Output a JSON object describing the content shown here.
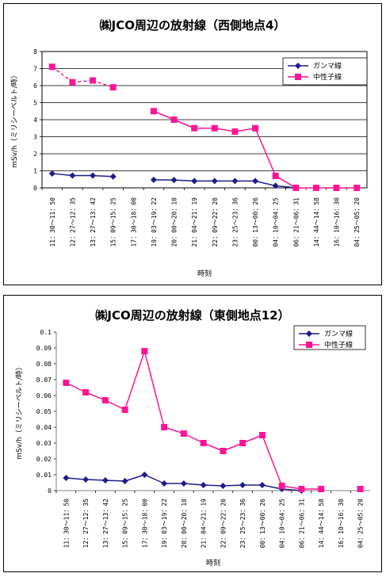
{
  "chart_data": [
    {
      "type": "line",
      "title": "㈱JCO周辺の放射線（西側地点4）",
      "ylabel": "mSv/h（ミリシーベルト/時）",
      "xlabel": "時刻",
      "ylim": [
        0,
        8
      ],
      "yticks": [
        "0",
        "1",
        "2",
        "3",
        "4",
        "5",
        "6",
        "7",
        "8"
      ],
      "grid": true,
      "legend_position": "top-right",
      "categories": [
        "11：30～11：50",
        "12：27～12：35",
        "13：27～13：42",
        "15：09～15：25",
        "17：30～18：00",
        "19：03～19：22",
        "20：00～20：10",
        "21：04～21：19",
        "22：09～22：20",
        "23：25～23：36",
        "00：13～00：26",
        "04：10～04：25",
        "06：21～06：31",
        "14：44～14：58",
        "16：10～16：30",
        "04：25～05：20"
      ],
      "series": [
        {
          "name": "ガンマ線",
          "color": "#1c1c8a",
          "marker": "diamond",
          "values": [
            0.84,
            0.72,
            0.72,
            0.66,
            null,
            0.47,
            0.46,
            0.4,
            0.4,
            0.4,
            0.4,
            0.12,
            0.0,
            null,
            null,
            null
          ]
        },
        {
          "name": "中性子線",
          "color": "#ff1493",
          "marker": "square",
          "values": [
            7.1,
            6.2,
            6.3,
            5.9,
            null,
            4.5,
            4.0,
            3.5,
            3.5,
            3.3,
            3.5,
            0.7,
            0.0,
            0.0,
            0.0,
            0.0
          ]
        }
      ]
    },
    {
      "type": "line",
      "title": "㈱JCO周辺の放射線（東側地点12）",
      "ylabel": "mSv/h（ミリシーベルト/時）",
      "xlabel": "時刻",
      "ylim": [
        0,
        0.1
      ],
      "yticks": [
        "0",
        "0.01",
        "0.02",
        "0.03",
        "0.04",
        "0.05",
        "0.06",
        "0.07",
        "0.08",
        "0.09",
        "0.1"
      ],
      "grid": false,
      "legend_position": "top-right",
      "categories": [
        "11：30～11：50",
        "12：27～12：35",
        "13：27～13：42",
        "15：09～15：25",
        "17：30～18：00",
        "19：03～19：22",
        "20：00～20：10",
        "21：04～21：19",
        "22：09～22：20",
        "23：25～23：36",
        "00：13～00：26",
        "04：10～04：25",
        "06：21～06：31",
        "14：44～14：58",
        "16：10～16：30",
        "04：25～05：20"
      ],
      "series": [
        {
          "name": "ガンマ線",
          "color": "#1c1c8a",
          "marker": "diamond",
          "values": [
            0.008,
            0.007,
            0.0065,
            0.006,
            0.01,
            0.0045,
            0.0045,
            0.0035,
            0.003,
            0.0035,
            0.0035,
            0.001,
            0.0,
            null,
            null,
            null
          ]
        },
        {
          "name": "中性子線",
          "color": "#ff1493",
          "marker": "square",
          "values": [
            0.068,
            0.062,
            0.057,
            0.051,
            0.088,
            0.04,
            0.036,
            0.03,
            0.025,
            0.03,
            0.035,
            0.003,
            0.001,
            0.001,
            null,
            0.001
          ]
        }
      ]
    }
  ]
}
